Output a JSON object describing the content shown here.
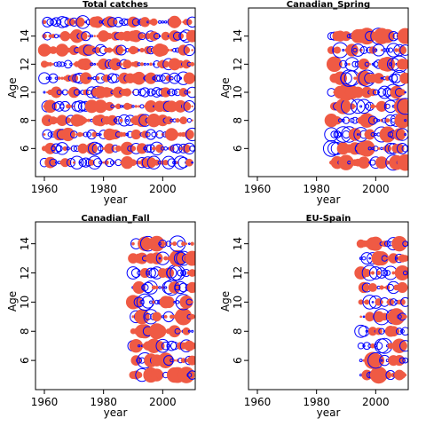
{
  "chart_data": [
    {
      "type": "scatter",
      "title": "Total catches",
      "xlabel": "year",
      "ylabel": "Age",
      "xlim": [
        1957,
        2011
      ],
      "ylim": [
        4.0,
        16.0
      ],
      "xticks": [
        1960,
        1980,
        2000
      ],
      "yticks": [
        6,
        8,
        10,
        12,
        14
      ],
      "years": [
        1960,
        2010
      ],
      "ages": [
        5,
        15
      ],
      "marker_positive": "open circle, blue",
      "marker_negative": "filled circle, red"
    },
    {
      "type": "scatter",
      "title": "Canadian_Spring",
      "xlabel": "year",
      "ylabel": "Age",
      "xlim": [
        1957,
        2011
      ],
      "ylim": [
        4.0,
        16.0
      ],
      "xticks": [
        1960,
        1980,
        2000
      ],
      "yticks": [
        6,
        8,
        10,
        12,
        14
      ],
      "years": [
        1985,
        2010
      ],
      "ages": [
        5,
        14
      ],
      "marker_positive": "open circle, blue",
      "marker_negative": "filled circle, red"
    },
    {
      "type": "scatter",
      "title": "Canadian_Fall",
      "xlabel": "year",
      "ylabel": "Age",
      "xlim": [
        1957,
        2011
      ],
      "ylim": [
        4.0,
        15.5
      ],
      "xticks": [
        1960,
        1980,
        2000
      ],
      "yticks": [
        6,
        8,
        10,
        12,
        14
      ],
      "years": [
        1990,
        2010
      ],
      "ages": [
        5,
        14
      ],
      "marker_positive": "open circle, blue",
      "marker_negative": "filled circle, red"
    },
    {
      "type": "scatter",
      "title": "EU-Spain",
      "xlabel": "year",
      "ylabel": "Age",
      "xlim": [
        1957,
        2011
      ],
      "ylim": [
        4.0,
        15.5
      ],
      "xticks": [
        1960,
        1980,
        2000
      ],
      "yticks": [
        6,
        8,
        10,
        12,
        14
      ],
      "years": [
        1995,
        2010
      ],
      "ages": [
        5,
        14
      ],
      "marker_positive": "open circle, blue",
      "marker_negative": "filled circle, red"
    }
  ],
  "colors": {
    "positive": "#0000ff",
    "negative": "#ef5a44"
  }
}
